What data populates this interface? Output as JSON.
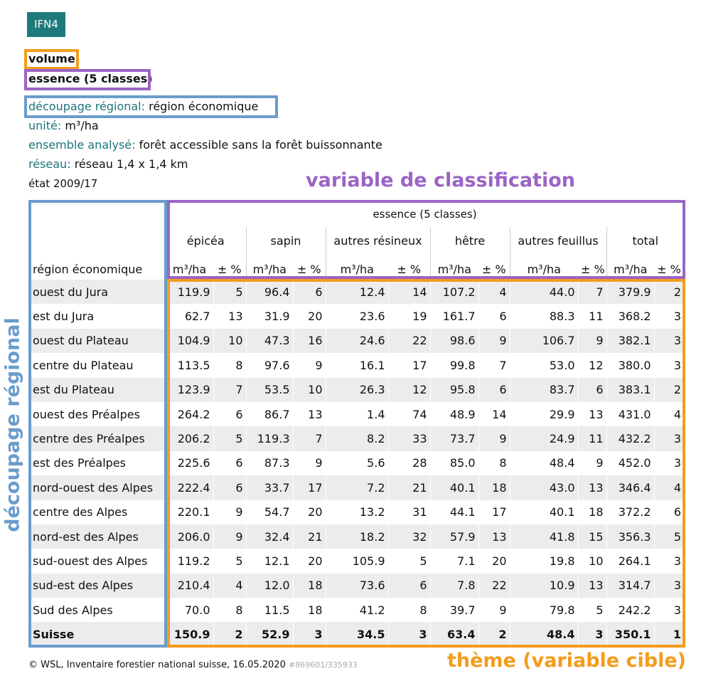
{
  "badge": "IFN4",
  "selection": {
    "theme": "volume",
    "classification": "essence (5 classes)"
  },
  "meta": [
    {
      "key": "découpage régional:",
      "value": "région économique"
    },
    {
      "key": "unité:",
      "value": "m³/ha"
    },
    {
      "key": "ensemble analysé:",
      "value": "forêt accessible sans la forêt buissonnante"
    },
    {
      "key": "réseau:",
      "value": "réseau 1,4 x 1,4 km"
    }
  ],
  "state": "état 2009/17",
  "annotations": {
    "classification": "variable de classification",
    "region": "découpage régional",
    "theme": "thème (variable cible)"
  },
  "table": {
    "group_header": "essence (5 classes)",
    "row_header": "région économique",
    "columns": [
      "épicéa",
      "sapin",
      "autres résineux",
      "hêtre",
      "autres feuillus",
      "total"
    ],
    "subheaders": [
      "m³/ha",
      "± %",
      "m³/ha",
      "± %",
      "m³/ha",
      "± %",
      "m³/ha",
      "± %",
      "m³/ha",
      "± %",
      "m³/ha",
      "± %"
    ],
    "rows": [
      {
        "region": "ouest du Jura",
        "values": [
          "119.9",
          "5",
          "96.4",
          "6",
          "12.4",
          "14",
          "107.2",
          "4",
          "44.0",
          "7",
          "379.9",
          "2"
        ]
      },
      {
        "region": "est du Jura",
        "values": [
          "62.7",
          "13",
          "31.9",
          "20",
          "23.6",
          "19",
          "161.7",
          "6",
          "88.3",
          "11",
          "368.2",
          "3"
        ]
      },
      {
        "region": "ouest du Plateau",
        "values": [
          "104.9",
          "10",
          "47.3",
          "16",
          "24.6",
          "22",
          "98.6",
          "9",
          "106.7",
          "9",
          "382.1",
          "3"
        ]
      },
      {
        "region": "centre du Plateau",
        "values": [
          "113.5",
          "8",
          "97.6",
          "9",
          "16.1",
          "17",
          "99.8",
          "7",
          "53.0",
          "12",
          "380.0",
          "3"
        ]
      },
      {
        "region": "est du Plateau",
        "values": [
          "123.9",
          "7",
          "53.5",
          "10",
          "26.3",
          "12",
          "95.8",
          "6",
          "83.7",
          "6",
          "383.1",
          "2"
        ]
      },
      {
        "region": "ouest des Préalpes",
        "values": [
          "264.2",
          "6",
          "86.7",
          "13",
          "1.4",
          "74",
          "48.9",
          "14",
          "29.9",
          "13",
          "431.0",
          "4"
        ]
      },
      {
        "region": "centre des Préalpes",
        "values": [
          "206.2",
          "5",
          "119.3",
          "7",
          "8.2",
          "33",
          "73.7",
          "9",
          "24.9",
          "11",
          "432.2",
          "3"
        ]
      },
      {
        "region": "est des Préalpes",
        "values": [
          "225.6",
          "6",
          "87.3",
          "9",
          "5.6",
          "28",
          "85.0",
          "8",
          "48.4",
          "9",
          "452.0",
          "3"
        ]
      },
      {
        "region": "nord-ouest des Alpes",
        "values": [
          "222.4",
          "6",
          "33.7",
          "17",
          "7.2",
          "21",
          "40.1",
          "18",
          "43.0",
          "13",
          "346.4",
          "4"
        ]
      },
      {
        "region": "centre des Alpes",
        "values": [
          "220.1",
          "9",
          "54.7",
          "20",
          "13.2",
          "31",
          "44.1",
          "17",
          "40.1",
          "18",
          "372.2",
          "6"
        ]
      },
      {
        "region": "nord-est des Alpes",
        "values": [
          "206.0",
          "9",
          "32.4",
          "21",
          "18.2",
          "32",
          "57.9",
          "13",
          "41.8",
          "15",
          "356.3",
          "5"
        ]
      },
      {
        "region": "sud-ouest des Alpes",
        "values": [
          "119.2",
          "5",
          "12.1",
          "20",
          "105.9",
          "5",
          "7.1",
          "20",
          "19.8",
          "10",
          "264.1",
          "3"
        ]
      },
      {
        "region": "sud-est des Alpes",
        "values": [
          "210.4",
          "4",
          "12.0",
          "18",
          "73.6",
          "6",
          "7.8",
          "22",
          "10.9",
          "13",
          "314.7",
          "3"
        ]
      },
      {
        "region": "Sud des Alpes",
        "values": [
          "70.0",
          "8",
          "11.5",
          "18",
          "41.2",
          "8",
          "39.7",
          "9",
          "79.8",
          "5",
          "242.2",
          "3"
        ]
      },
      {
        "region": "Suisse",
        "values": [
          "150.9",
          "2",
          "52.9",
          "3",
          "34.5",
          "3",
          "63.4",
          "2",
          "48.4",
          "3",
          "350.1",
          "1"
        ]
      }
    ]
  },
  "footer": {
    "copyright": "© WSL, Inventaire forestier national suisse, 16.05.2020",
    "id": "#869601/335933"
  }
}
